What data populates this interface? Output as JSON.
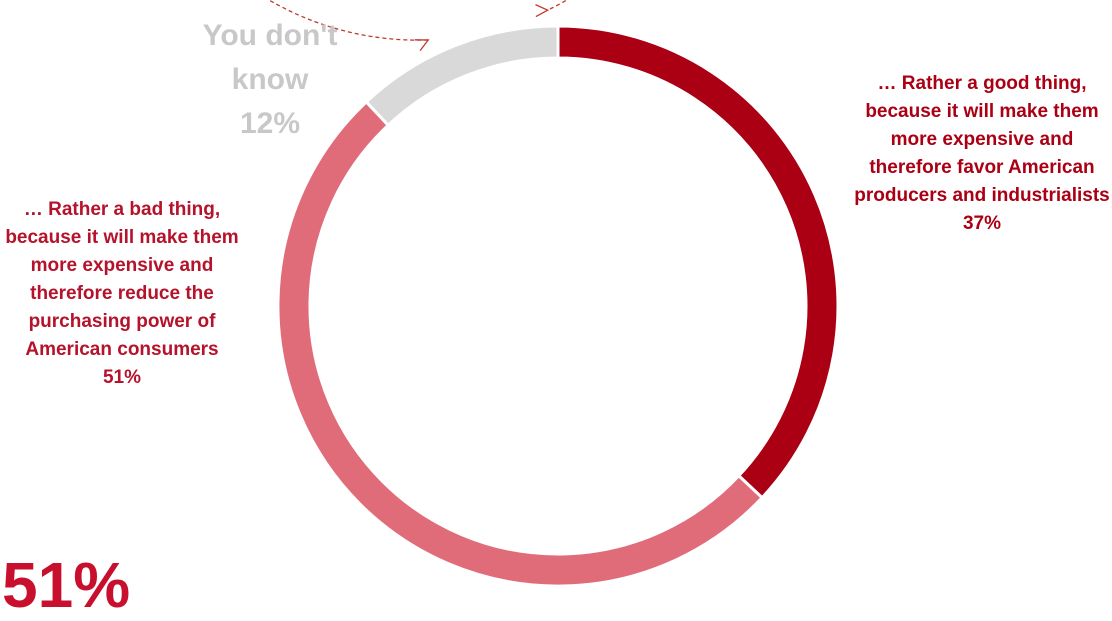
{
  "chart_data": {
    "type": "pie",
    "donut": true,
    "slices": [
      {
        "label": "… Rather a good thing, because it will make them more expensive and therefore favor American producers and industrialists",
        "value": 37,
        "value_text": "37%",
        "color": "#ab0014",
        "label_color": "#ab0014"
      },
      {
        "label": "… Rather a bad thing, because it will make them more expensive and therefore reduce the purchasing power of American consumers",
        "value": 51,
        "value_text": "51%",
        "color": "#e06c7a",
        "label_color": "#b5122b"
      },
      {
        "label": "You don't know",
        "value": 12,
        "value_text": "12%",
        "color": "#d9d9d9",
        "label_color": "#c8c8c8"
      }
    ],
    "annotation": {
      "text": "51%",
      "color": "#c8102e",
      "style": "dashed circular arrow around the donut"
    },
    "accent_color": "#c0392b"
  }
}
